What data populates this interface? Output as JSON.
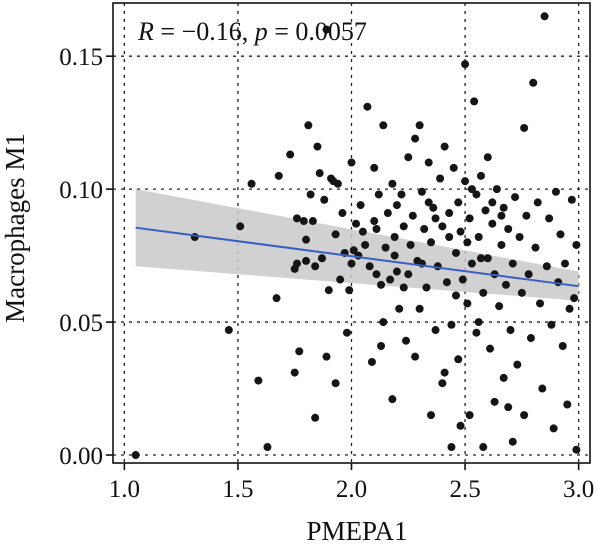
{
  "chart_data": {
    "type": "scatter",
    "title": "",
    "xlabel": "PMEPA1",
    "ylabel": "Macrophages M1",
    "xlim": [
      0.95,
      3.05
    ],
    "ylim": [
      -0.003,
      0.17
    ],
    "x_ticks": [
      1.0,
      1.5,
      2.0,
      2.5,
      3.0
    ],
    "x_tick_labels": [
      "1.0",
      "1.5",
      "2.0",
      "2.5",
      "3.0"
    ],
    "y_ticks": [
      0.0,
      0.05,
      0.1,
      0.15
    ],
    "y_tick_labels": [
      "0.00",
      "0.05",
      "0.10",
      "0.15"
    ],
    "grid": true,
    "annotation": {
      "r_symbol": "R",
      "r_text": " = −0.16, ",
      "p_symbol": "p",
      "p_text": " = 0.0057"
    },
    "regression": {
      "x": [
        1.05,
        3.0
      ],
      "y": [
        0.0855,
        0.0635
      ],
      "ci_lower": [
        0.071,
        0.058
      ],
      "ci_upper": [
        0.1,
        0.069
      ],
      "line_color": "#3a5fc4",
      "band_color": "#c9c9c9"
    },
    "points": [
      [
        1.05,
        0.0
      ],
      [
        1.31,
        0.082
      ],
      [
        1.46,
        0.047
      ],
      [
        1.51,
        0.086
      ],
      [
        1.56,
        0.102
      ],
      [
        1.59,
        0.028
      ],
      [
        1.63,
        0.003
      ],
      [
        1.67,
        0.059
      ],
      [
        1.68,
        0.105
      ],
      [
        1.73,
        0.113
      ],
      [
        1.75,
        0.031
      ],
      [
        1.75,
        0.07
      ],
      [
        1.76,
        0.072
      ],
      [
        1.76,
        0.089
      ],
      [
        1.77,
        0.039
      ],
      [
        1.79,
        0.088
      ],
      [
        1.8,
        0.073
      ],
      [
        1.8,
        0.081
      ],
      [
        1.81,
        0.124
      ],
      [
        1.82,
        0.098
      ],
      [
        1.83,
        0.088
      ],
      [
        1.84,
        0.071
      ],
      [
        1.84,
        0.014
      ],
      [
        1.85,
        0.116
      ],
      [
        1.86,
        0.106
      ],
      [
        1.87,
        0.074
      ],
      [
        1.88,
        0.096
      ],
      [
        1.89,
        0.037
      ],
      [
        1.89,
        0.16
      ],
      [
        1.9,
        0.062
      ],
      [
        1.91,
        0.104
      ],
      [
        1.92,
        0.103
      ],
      [
        1.93,
        0.083
      ],
      [
        1.93,
        0.027
      ],
      [
        1.94,
        0.102
      ],
      [
        1.95,
        0.066
      ],
      [
        1.96,
        0.091
      ],
      [
        1.97,
        0.076
      ],
      [
        1.98,
        0.046
      ],
      [
        1.99,
        0.062
      ],
      [
        2.0,
        0.072
      ],
      [
        2.0,
        0.11
      ],
      [
        2.01,
        0.077
      ],
      [
        2.02,
        0.087
      ],
      [
        2.03,
        0.075
      ],
      [
        2.04,
        0.094
      ],
      [
        2.05,
        0.084
      ],
      [
        2.06,
        0.079
      ],
      [
        2.07,
        0.131
      ],
      [
        2.08,
        0.071
      ],
      [
        2.09,
        0.035
      ],
      [
        2.1,
        0.108
      ],
      [
        2.1,
        0.088
      ],
      [
        2.11,
        0.068
      ],
      [
        2.12,
        0.098
      ],
      [
        2.13,
        0.064
      ],
      [
        2.13,
        0.041
      ],
      [
        2.14,
        0.124
      ],
      [
        2.15,
        0.078
      ],
      [
        2.16,
        0.091
      ],
      [
        2.17,
        0.066
      ],
      [
        2.18,
        0.102
      ],
      [
        2.18,
        0.021
      ],
      [
        2.19,
        0.082
      ],
      [
        2.2,
        0.069
      ],
      [
        2.2,
        0.094
      ],
      [
        2.21,
        0.055
      ],
      [
        2.22,
        0.098
      ],
      [
        2.23,
        0.086
      ],
      [
        2.24,
        0.043
      ],
      [
        2.25,
        0.112
      ],
      [
        2.25,
        0.068
      ],
      [
        2.26,
        0.079
      ],
      [
        2.27,
        0.09
      ],
      [
        2.28,
        0.037
      ],
      [
        2.29,
        0.073
      ],
      [
        2.3,
        0.124
      ],
      [
        2.3,
        0.055
      ],
      [
        2.31,
        0.099
      ],
      [
        2.32,
        0.085
      ],
      [
        2.33,
        0.063
      ],
      [
        2.34,
        0.11
      ],
      [
        2.35,
        0.015
      ],
      [
        2.35,
        0.08
      ],
      [
        2.36,
        0.093
      ],
      [
        2.37,
        0.047
      ],
      [
        2.38,
        0.071
      ],
      [
        2.39,
        0.104
      ],
      [
        2.4,
        0.086
      ],
      [
        2.4,
        0.027
      ],
      [
        2.41,
        0.116
      ],
      [
        2.42,
        0.065
      ],
      [
        2.43,
        0.091
      ],
      [
        2.44,
        0.049
      ],
      [
        2.44,
        0.003
      ],
      [
        2.45,
        0.108
      ],
      [
        2.46,
        0.076
      ],
      [
        2.47,
        0.095
      ],
      [
        2.47,
        0.036
      ],
      [
        2.48,
        0.084
      ],
      [
        2.49,
        0.066
      ],
      [
        2.5,
        0.103
      ],
      [
        2.5,
        0.147
      ],
      [
        2.51,
        0.057
      ],
      [
        2.52,
        0.089
      ],
      [
        2.52,
        0.015
      ],
      [
        2.53,
        0.072
      ],
      [
        2.54,
        0.133
      ],
      [
        2.55,
        0.098
      ],
      [
        2.55,
        0.046
      ],
      [
        2.56,
        0.082
      ],
      [
        2.57,
        0.105
      ],
      [
        2.58,
        0.061
      ],
      [
        2.58,
        0.003
      ],
      [
        2.59,
        0.092
      ],
      [
        2.6,
        0.074
      ],
      [
        2.6,
        0.112
      ],
      [
        2.61,
        0.04
      ],
      [
        2.62,
        0.087
      ],
      [
        2.63,
        0.068
      ],
      [
        2.63,
        0.02
      ],
      [
        2.64,
        0.1
      ],
      [
        2.65,
        0.056
      ],
      [
        2.66,
        0.079
      ],
      [
        2.67,
        0.029
      ],
      [
        2.67,
        0.093
      ],
      [
        2.68,
        0.064
      ],
      [
        2.69,
        0.085
      ],
      [
        2.7,
        0.047
      ],
      [
        2.71,
        0.072
      ],
      [
        2.71,
        0.005
      ],
      [
        2.72,
        0.097
      ],
      [
        2.73,
        0.034
      ],
      [
        2.74,
        0.082
      ],
      [
        2.75,
        0.061
      ],
      [
        2.76,
        0.123
      ],
      [
        2.76,
        0.015
      ],
      [
        2.77,
        0.09
      ],
      [
        2.78,
        0.068
      ],
      [
        2.79,
        0.044
      ],
      [
        2.8,
        0.14
      ],
      [
        2.81,
        0.078
      ],
      [
        2.82,
        0.095
      ],
      [
        2.83,
        0.057
      ],
      [
        2.84,
        0.025
      ],
      [
        2.85,
        0.165
      ],
      [
        2.86,
        0.071
      ],
      [
        2.87,
        0.089
      ],
      [
        2.88,
        0.049
      ],
      [
        2.89,
        0.01
      ],
      [
        2.9,
        0.099
      ],
      [
        2.91,
        0.065
      ],
      [
        2.92,
        0.083
      ],
      [
        2.93,
        0.041
      ],
      [
        2.94,
        0.072
      ],
      [
        2.95,
        0.019
      ],
      [
        2.96,
        0.055
      ],
      [
        2.97,
        0.096
      ],
      [
        2.98,
        0.059
      ],
      [
        2.99,
        0.079
      ],
      [
        2.99,
        0.002
      ],
      [
        2.23,
        0.063
      ],
      [
        2.37,
        0.089
      ],
      [
        2.48,
        0.011
      ],
      [
        2.53,
        0.1
      ],
      [
        2.14,
        0.05
      ],
      [
        2.28,
        0.119
      ],
      [
        2.43,
        0.082
      ],
      [
        2.57,
        0.074
      ],
      [
        2.69,
        0.018
      ],
      [
        2.34,
        0.095
      ],
      [
        2.19,
        0.075
      ],
      [
        2.46,
        0.06
      ],
      [
        2.62,
        0.095
      ],
      [
        2.41,
        0.031
      ],
      [
        2.11,
        0.085
      ],
      [
        2.31,
        0.072
      ],
      [
        2.51,
        0.08
      ],
      [
        2.66,
        0.09
      ],
      [
        2.56,
        0.05
      ]
    ]
  }
}
